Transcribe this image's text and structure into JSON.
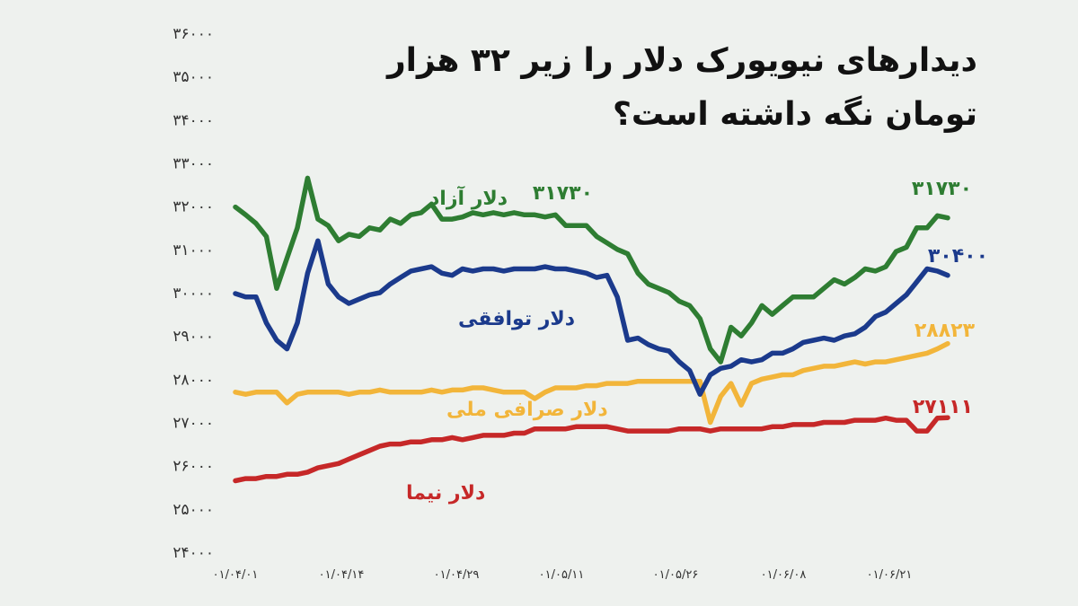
{
  "chart_data": {
    "type": "line",
    "title": "دیدارهای نیویورک دلار را زیر ۳۲ هزار تومان نگه داشته است؟",
    "xlabel": "",
    "ylabel": "",
    "ylim": [
      24000,
      36000
    ],
    "yticks": [
      "۲۴۰۰۰",
      "۲۵۰۰۰",
      "۲۶۰۰۰",
      "۲۷۰۰۰",
      "۲۸۰۰۰",
      "۲۹۰۰۰",
      "۳۰۰۰۰",
      "۳۱۰۰۰",
      "۳۲۰۰۰",
      "۳۳۰۰۰",
      "۳۴۰۰۰",
      "۳۵۰۰۰",
      "۳۶۰۰۰"
    ],
    "xticks": [
      "۰۱/۰۴/۰۱",
      "۰۱/۰۴/۱۴",
      "۰۱/۰۴/۲۹",
      "۰۱/۰۵/۱۱",
      "۰۱/۰۵/۲۶",
      "۰۱/۰۶/۰۸",
      "۰۱/۰۶/۲۱"
    ],
    "grid": false,
    "series": [
      {
        "name": "دلار آزاد",
        "color": "#2e7d32",
        "end_label": "۳۱۷۳۰",
        "mid_label": "۳۱۷۳۰",
        "values": [
          31980,
          31800,
          31600,
          31300,
          30100,
          30800,
          31500,
          32650,
          31700,
          31550,
          31200,
          31350,
          31300,
          31500,
          31450,
          31700,
          31600,
          31800,
          31850,
          32050,
          31700,
          31700,
          31750,
          31850,
          31800,
          31850,
          31800,
          31850,
          31800,
          31800,
          31750,
          31800,
          31550,
          31550,
          31550,
          31300,
          31150,
          31000,
          30900,
          30450,
          30200,
          30100,
          30000,
          29800,
          29700,
          29400,
          28700,
          28400,
          29200,
          29000,
          29300,
          29700,
          29500,
          29700,
          29900,
          29900,
          29900,
          30100,
          30300,
          30200,
          30350,
          30550,
          30500,
          30600,
          30950,
          31050,
          31500,
          31500,
          31780,
          31730
        ]
      },
      {
        "name": "دلار توافقی",
        "color": "#1b3a8c",
        "end_label": "۳۰۴۰۰",
        "values": [
          29980,
          29900,
          29900,
          29300,
          28900,
          28700,
          29300,
          30450,
          31200,
          30200,
          29900,
          29750,
          29850,
          29950,
          30000,
          30200,
          30350,
          30500,
          30550,
          30600,
          30450,
          30400,
          30550,
          30500,
          30550,
          30550,
          30500,
          30550,
          30550,
          30550,
          30600,
          30550,
          30550,
          30500,
          30450,
          30350,
          30400,
          29900,
          28900,
          28950,
          28800,
          28700,
          28650,
          28400,
          28200,
          27650,
          28100,
          28250,
          28300,
          28450,
          28400,
          28450,
          28600,
          28600,
          28700,
          28850,
          28900,
          28950,
          28900,
          29000,
          29050,
          29200,
          29450,
          29550,
          29750,
          29950,
          30250,
          30550,
          30500,
          30400
        ]
      },
      {
        "name": "دلار صرافی ملی",
        "color": "#f2b53a",
        "end_label": "۲۸۸۲۳",
        "values": [
          27700,
          27650,
          27700,
          27700,
          27700,
          27450,
          27650,
          27700,
          27700,
          27700,
          27700,
          27650,
          27700,
          27700,
          27750,
          27700,
          27700,
          27700,
          27700,
          27750,
          27700,
          27750,
          27750,
          27800,
          27800,
          27750,
          27700,
          27700,
          27700,
          27550,
          27700,
          27800,
          27800,
          27800,
          27850,
          27850,
          27900,
          27900,
          27900,
          27950,
          27950,
          27950,
          27950,
          27950,
          27950,
          27950,
          27000,
          27600,
          27900,
          27400,
          27900,
          28000,
          28050,
          28100,
          28100,
          28200,
          28250,
          28300,
          28300,
          28350,
          28400,
          28350,
          28400,
          28400,
          28450,
          28500,
          28550,
          28600,
          28700,
          28823
        ]
      },
      {
        "name": "دلار نیما",
        "color": "#c62828",
        "end_label": "۲۷۱۱۱",
        "values": [
          25650,
          25700,
          25700,
          25750,
          25750,
          25800,
          25800,
          25850,
          25950,
          26000,
          26050,
          26150,
          26250,
          26350,
          26450,
          26500,
          26500,
          26550,
          26550,
          26600,
          26600,
          26650,
          26600,
          26650,
          26700,
          26700,
          26700,
          26750,
          26750,
          26850,
          26850,
          26850,
          26850,
          26900,
          26900,
          26900,
          26900,
          26850,
          26800,
          26800,
          26800,
          26800,
          26800,
          26850,
          26850,
          26850,
          26800,
          26850,
          26850,
          26850,
          26850,
          26850,
          26900,
          26900,
          26950,
          26950,
          26950,
          27000,
          27000,
          27000,
          27050,
          27050,
          27050,
          27100,
          27050,
          27050,
          26800,
          26800,
          27100,
          27111
        ]
      }
    ]
  },
  "colors": {
    "background": "#eef1ee",
    "title": "#111111"
  }
}
